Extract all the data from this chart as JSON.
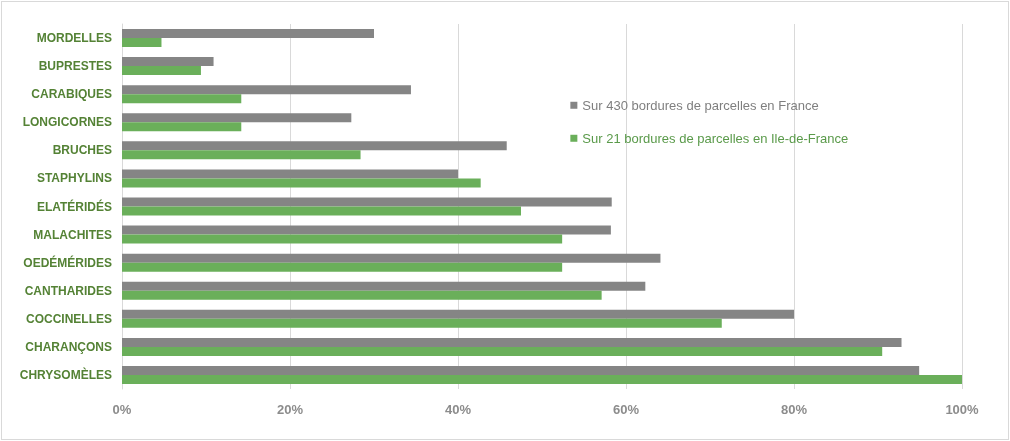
{
  "chart_data": {
    "type": "bar",
    "orientation": "horizontal",
    "categories": [
      "MORDELLES",
      "BUPRESTES",
      "CARABIQUES",
      "LONGICORNES",
      "BRUCHES",
      "STAPHYLINS",
      "ELATÉRIDÉS",
      "MALACHITES",
      "OEDÉMÉRIDES",
      "CANTHARIDES",
      "COCCINELLES",
      "CHARANÇONS",
      "CHRYSOMÈLES"
    ],
    "series": [
      {
        "name": "Sur 430 bordures de parcelles en France",
        "color": "#858585",
        "values": [
          30.0,
          10.9,
          34.4,
          27.3,
          45.8,
          40.0,
          58.3,
          58.2,
          64.1,
          62.3,
          80.0,
          92.8,
          94.9
        ]
      },
      {
        "name": "Sur 21 bordures de parcelles en Ile-de-France",
        "color": "#6aaf5a",
        "values": [
          4.7,
          9.4,
          14.2,
          14.2,
          28.4,
          42.7,
          47.5,
          52.4,
          52.4,
          57.1,
          71.4,
          90.5,
          100
        ]
      }
    ],
    "xlim": [
      0,
      100
    ],
    "xticks": [
      {
        "value": 0,
        "label": "0%"
      },
      {
        "value": 20,
        "label": "20%"
      },
      {
        "value": 40,
        "label": "40%"
      },
      {
        "value": 60,
        "label": "60%"
      },
      {
        "value": 80,
        "label": "80%"
      },
      {
        "value": 100,
        "label": "100%"
      }
    ],
    "grid": "x",
    "legend": "right"
  }
}
